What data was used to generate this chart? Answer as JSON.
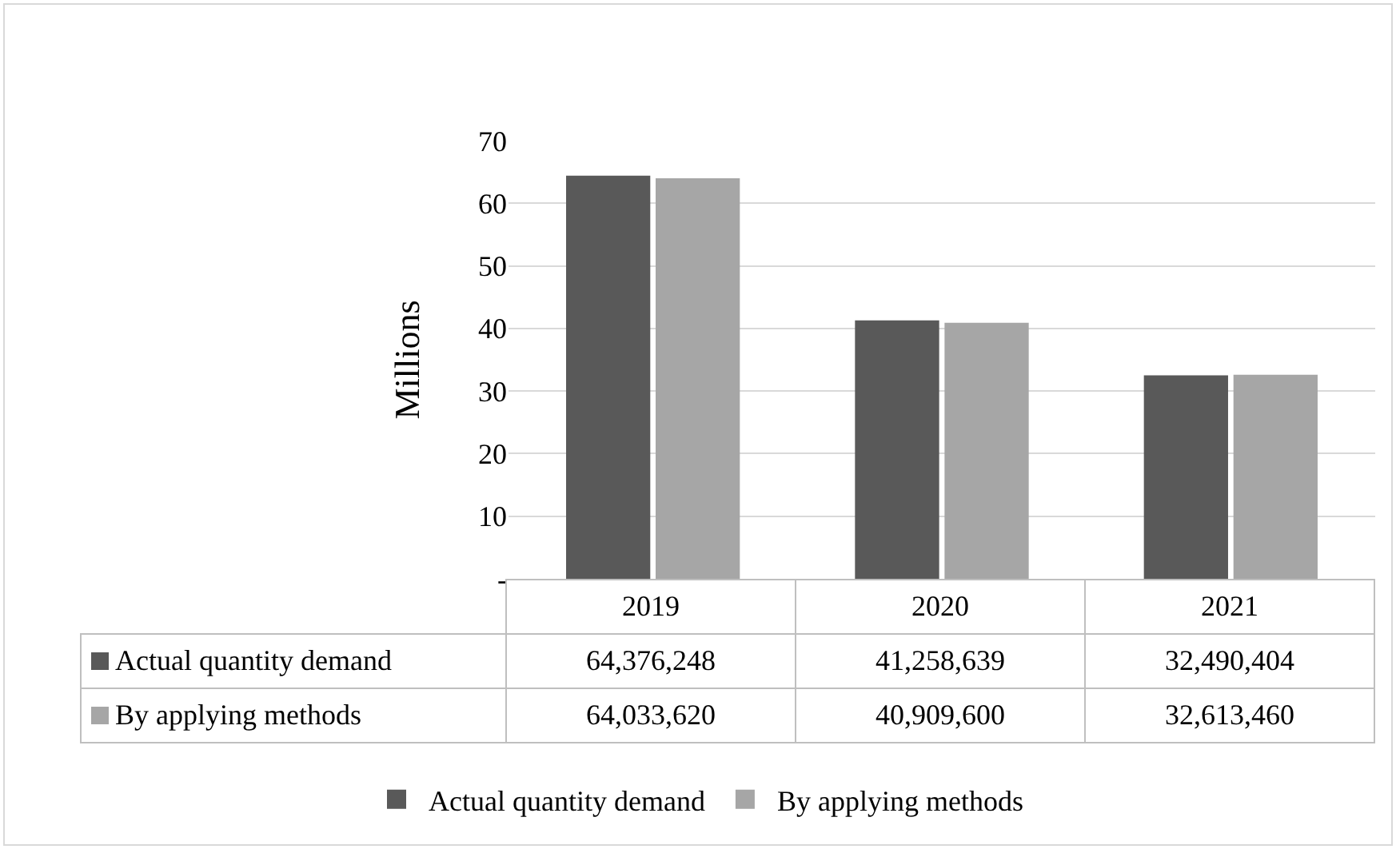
{
  "chart_data": {
    "type": "bar",
    "ylabel": "Millions",
    "categories": [
      "2019",
      "2020",
      "2021"
    ],
    "series": [
      {
        "name": "Actual quantity demand",
        "color": "#595959",
        "values": [
          64.4,
          41.3,
          32.5
        ]
      },
      {
        "name": "By applying methods",
        "color": "#a6a6a6",
        "values": [
          64.0,
          40.9,
          32.6
        ]
      }
    ],
    "annotations": [
      "64,376,248",
      "41,258,639",
      "32,490,404",
      "64,033,620",
      "40,909,600",
      "32,613,460"
    ],
    "ylim": [
      0,
      70
    ],
    "yticks": [
      {
        "value": 0,
        "label": "-"
      },
      10,
      20,
      30,
      40,
      50,
      60,
      70
    ],
    "grid": "y",
    "legend": "bottom"
  }
}
